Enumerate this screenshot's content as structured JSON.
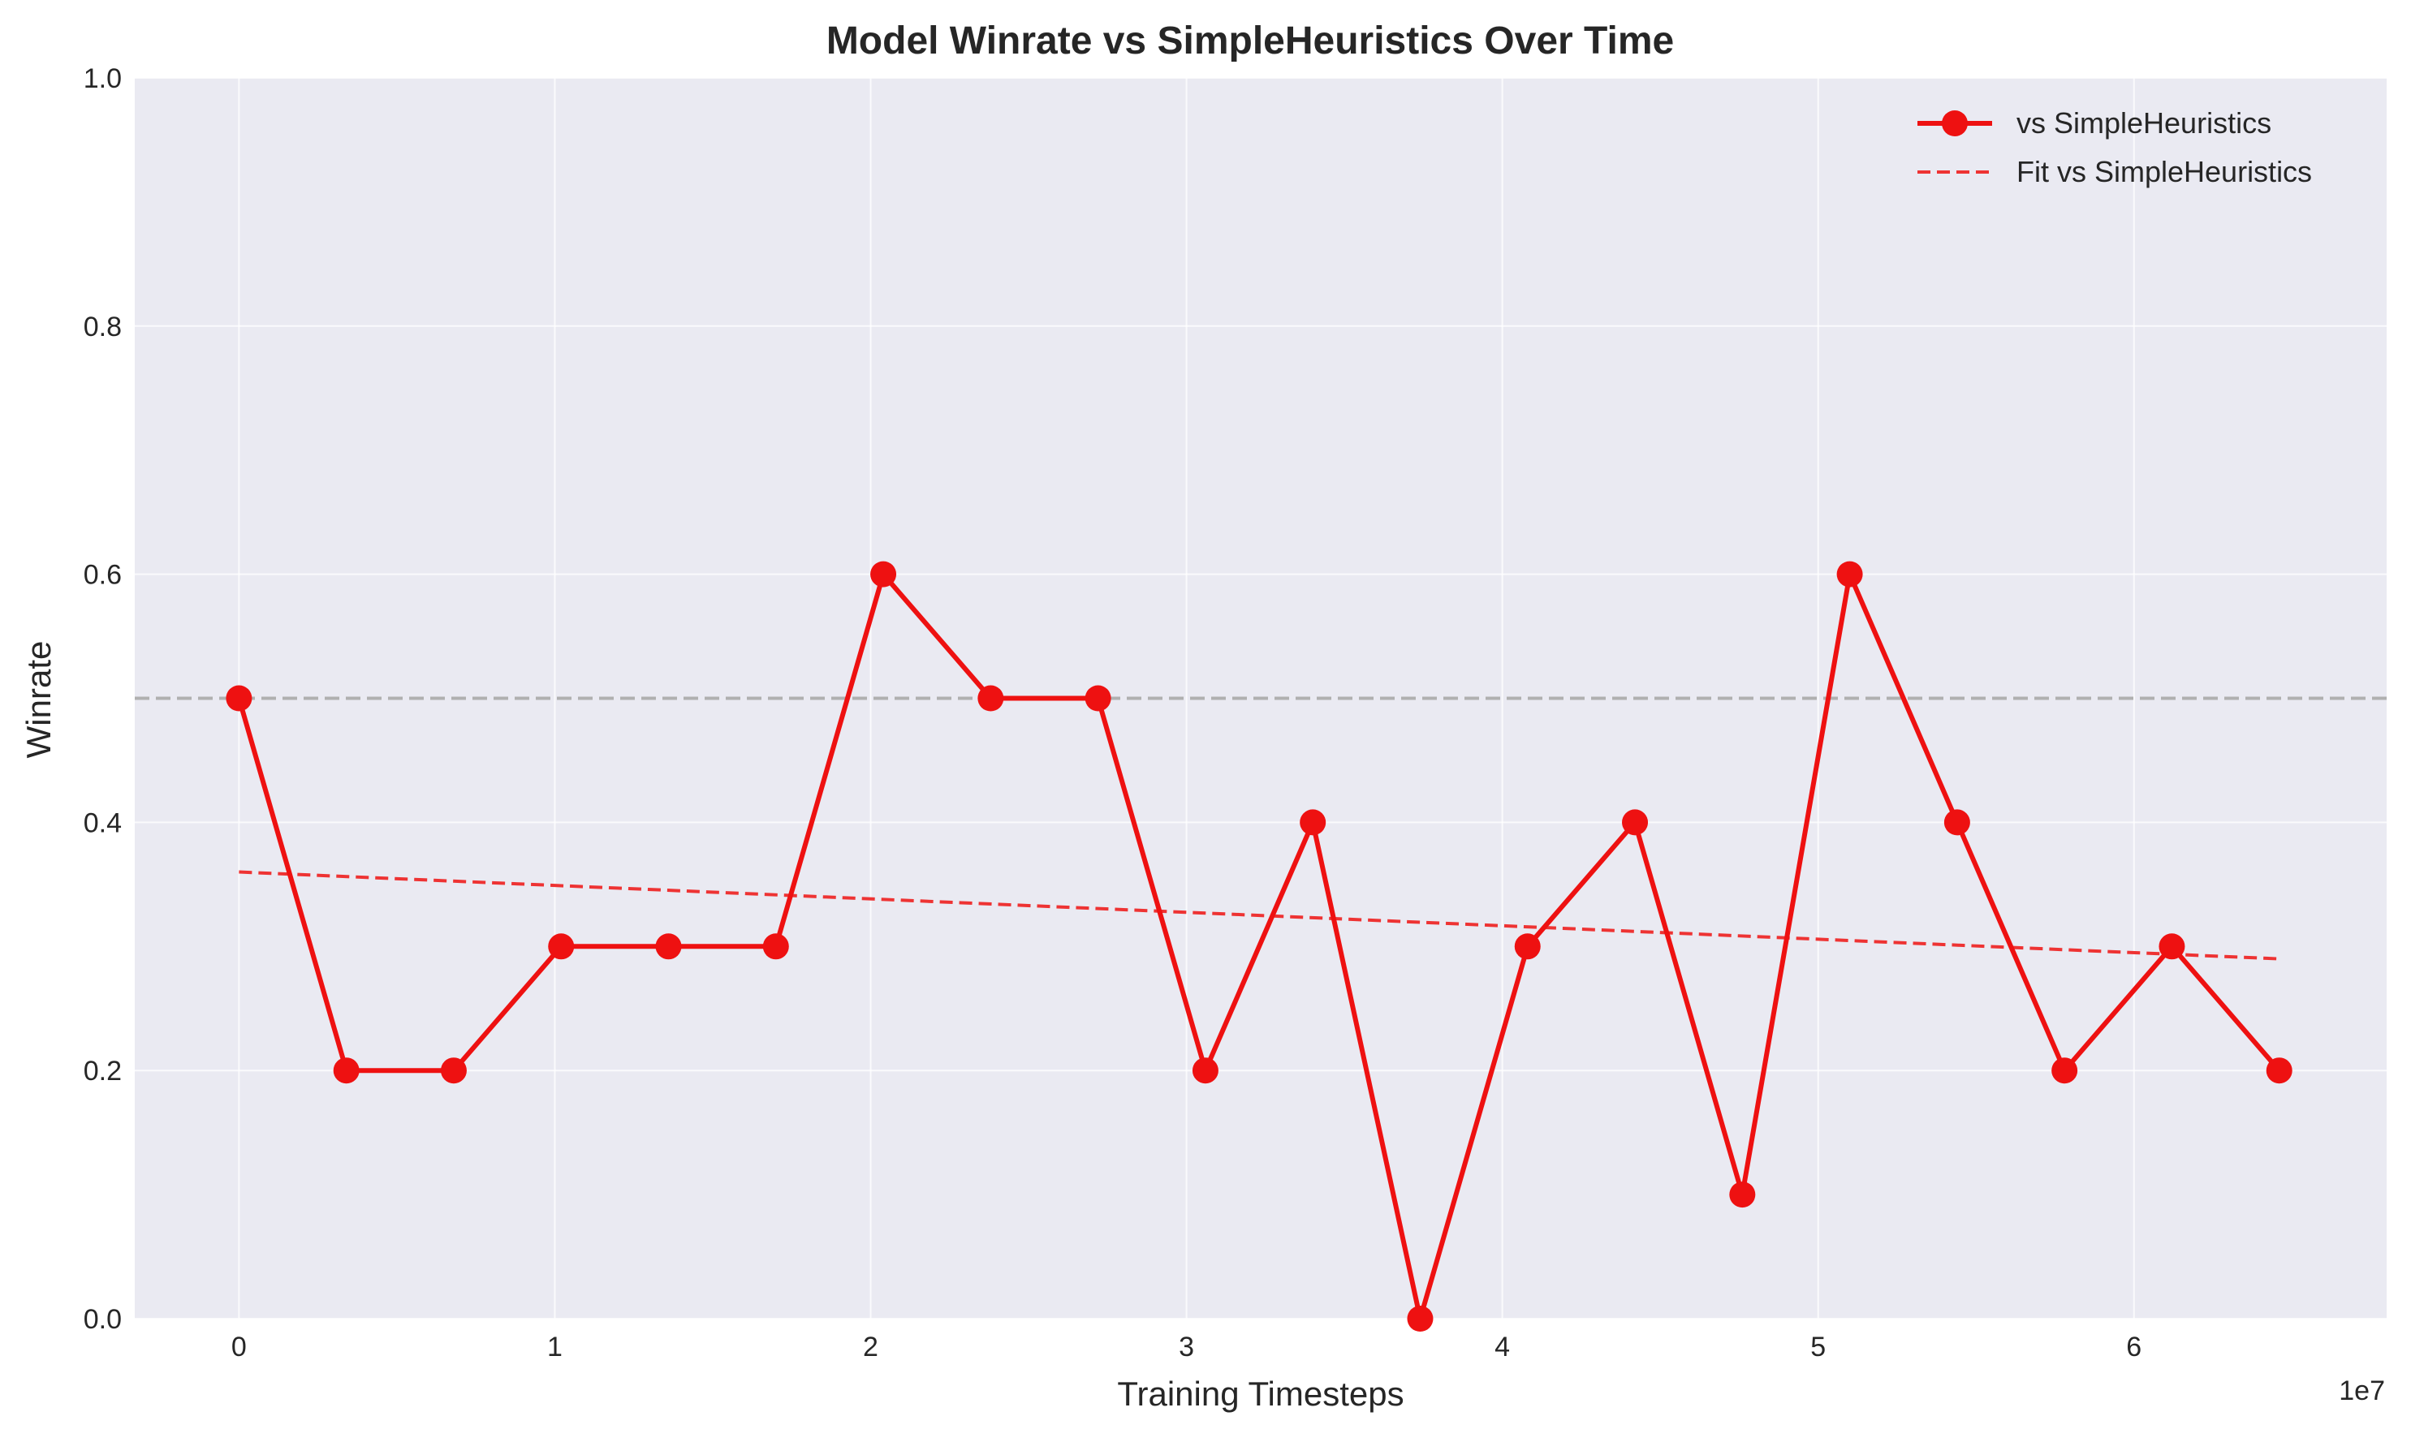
{
  "chart_data": {
    "type": "line",
    "title": "Model Winrate vs SimpleHeuristics Over Time",
    "xlabel": "Training Timesteps",
    "ylabel": "Winrate",
    "x_offset_label": "1e7",
    "x_multiplier": 10000000,
    "xlim": [
      -3300000,
      68000000
    ],
    "ylim": [
      0,
      1.0
    ],
    "xticks": [
      0,
      10000000,
      20000000,
      30000000,
      40000000,
      50000000,
      60000000
    ],
    "xtick_labels": [
      "0",
      "1",
      "2",
      "3",
      "4",
      "5",
      "6"
    ],
    "yticks": [
      0,
      0.2,
      0.4,
      0.6,
      0.8,
      1.0
    ],
    "ytick_labels": [
      "0.0",
      "0.2",
      "0.4",
      "0.6",
      "0.8",
      "1.0"
    ],
    "grid": true,
    "legend_position": "top-right",
    "reference_line": {
      "y": 0.5,
      "color": "#b0b0b0"
    },
    "series": [
      {
        "name": "vs SimpleHeuristics",
        "color": "#ee1111",
        "style": "solid-markers",
        "x": [
          0,
          3400000,
          6800000,
          10200000,
          13600000,
          17000000,
          20400000,
          23800000,
          27200000,
          30600000,
          34000000,
          37400000,
          40800000,
          44200000,
          47600000,
          51000000,
          54400000,
          57800000,
          61200000,
          64600000
        ],
        "values": [
          0.5,
          0.2,
          0.2,
          0.3,
          0.3,
          0.3,
          0.6,
          0.5,
          0.5,
          0.2,
          0.4,
          0.0,
          0.3,
          0.4,
          0.1,
          0.6,
          0.4,
          0.2,
          0.3,
          0.2
        ]
      },
      {
        "name": "Fit vs SimpleHeuristics",
        "color": "#ee3333",
        "style": "dashed",
        "x": [
          0,
          64600000
        ],
        "values": [
          0.36,
          0.29
        ]
      }
    ]
  }
}
